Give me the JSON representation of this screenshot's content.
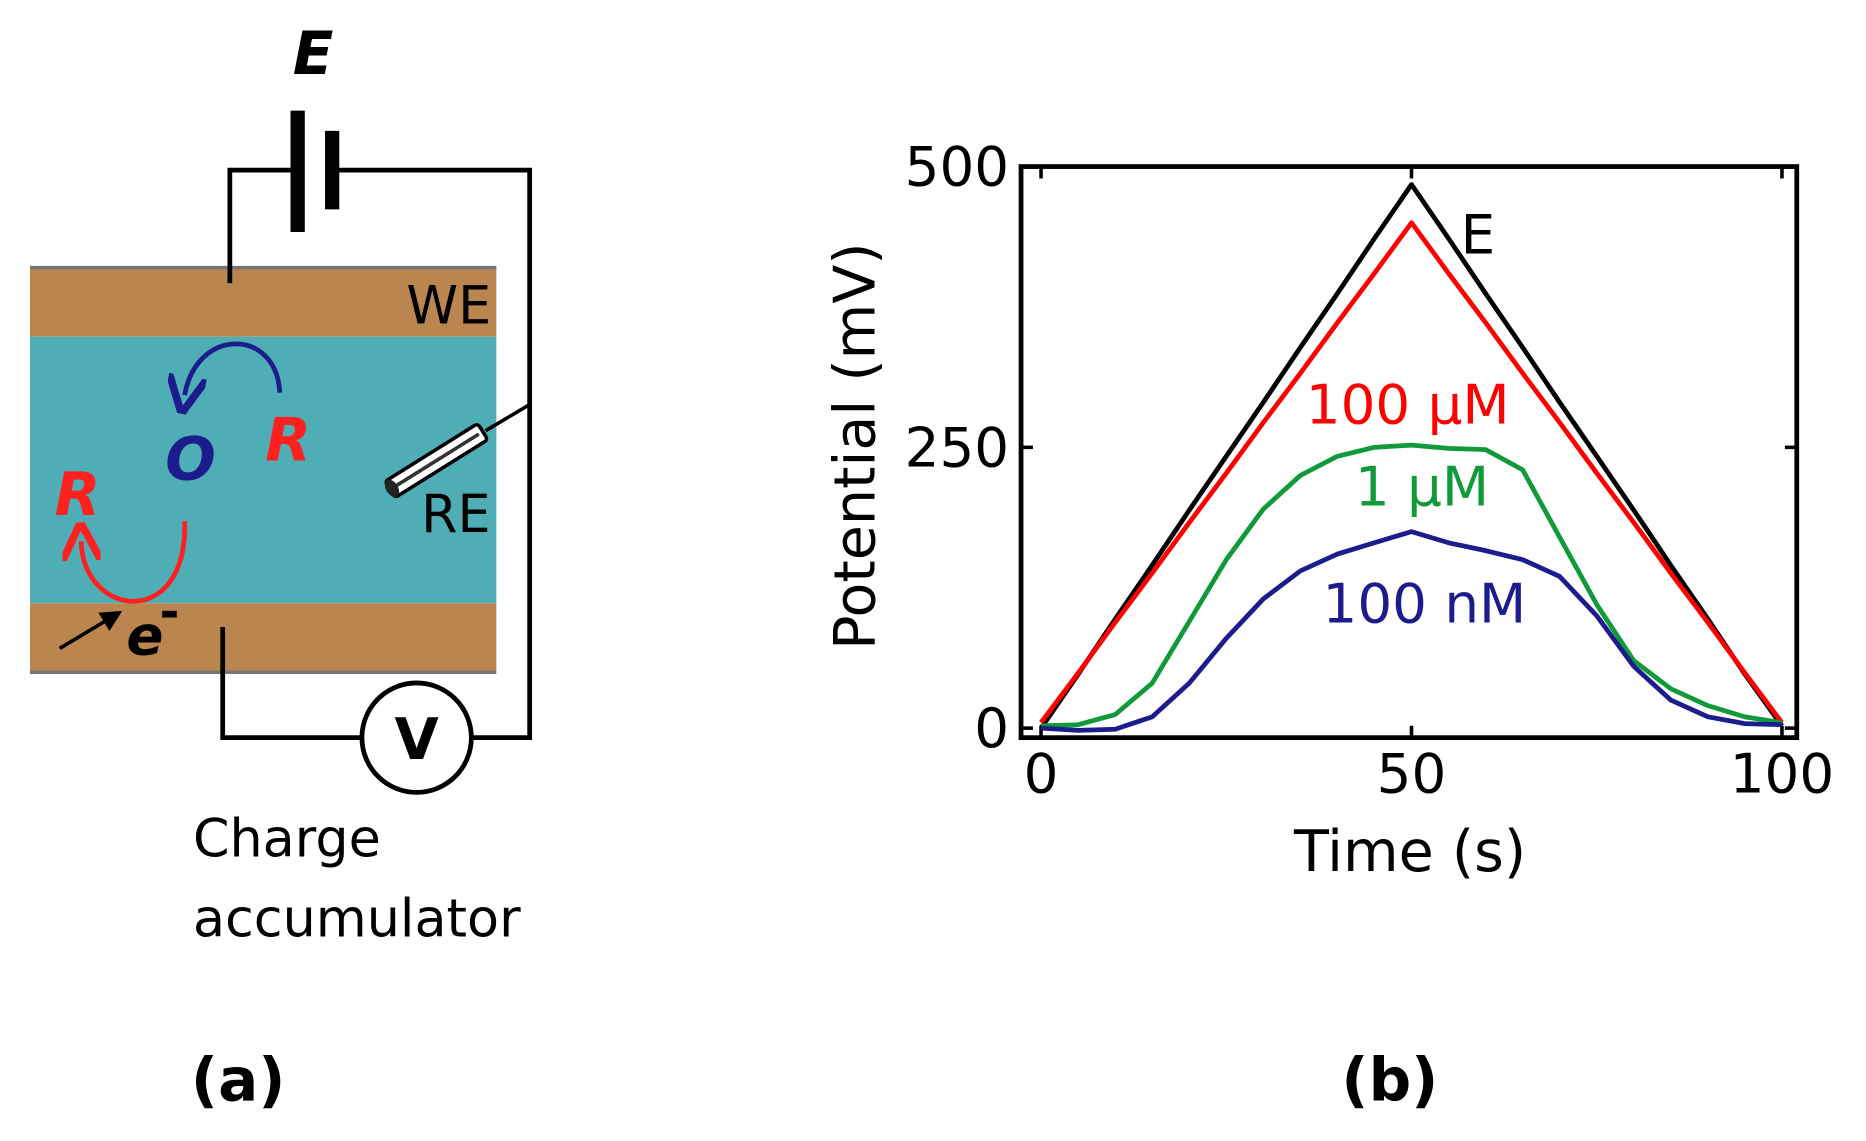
{
  "diagram": {
    "battery_label": "E",
    "we_label": "WE",
    "re_label": "RE",
    "oxidized": "O",
    "reduced_top": "R",
    "reduced_bottom": "R",
    "electron": "e",
    "electron_charge": "-",
    "meter": "V",
    "caption_line1": "Charge",
    "caption_line2": "accumulator",
    "panel_label": "(a)"
  },
  "chart_data": {
    "type": "line",
    "panel_label": "(b)",
    "x_label": "Time (s)",
    "y_label": "Potential (mV)",
    "x": [
      0,
      5,
      10,
      15,
      20,
      25,
      30,
      35,
      40,
      45,
      50,
      55,
      60,
      65,
      70,
      75,
      80,
      85,
      90,
      95,
      100
    ],
    "series": [
      {
        "name": "E",
        "color": "#000000",
        "values": [
          0,
          48,
          97,
          145,
          194,
          242,
          290,
          339,
          387,
          436,
          484,
          436,
          387,
          339,
          290,
          242,
          194,
          145,
          97,
          48,
          2
        ]
      },
      {
        "name": "100 µM",
        "color": "#ff0000",
        "values": [
          5,
          49,
          94,
          138,
          183,
          227,
          272,
          316,
          361,
          405,
          450,
          405,
          361,
          316,
          272,
          227,
          183,
          138,
          94,
          49,
          5
        ]
      },
      {
        "name": "1 µM",
        "color": "#119a3a",
        "values": [
          2,
          3,
          12,
          40,
          95,
          150,
          195,
          225,
          242,
          250,
          252,
          249,
          248,
          230,
          170,
          110,
          60,
          35,
          20,
          10,
          5
        ]
      },
      {
        "name": "100 nM",
        "color": "#1c1c8c",
        "values": [
          0,
          -2,
          -1,
          10,
          40,
          80,
          115,
          140,
          155,
          165,
          175,
          165,
          158,
          150,
          135,
          100,
          55,
          25,
          10,
          4,
          3
        ]
      }
    ],
    "xlim": [
      -2.7,
      102
    ],
    "ylim": [
      -8.5,
      500
    ],
    "xticks": [
      0,
      50,
      100
    ],
    "yticks": [
      0,
      250,
      500
    ],
    "grid": false
  }
}
